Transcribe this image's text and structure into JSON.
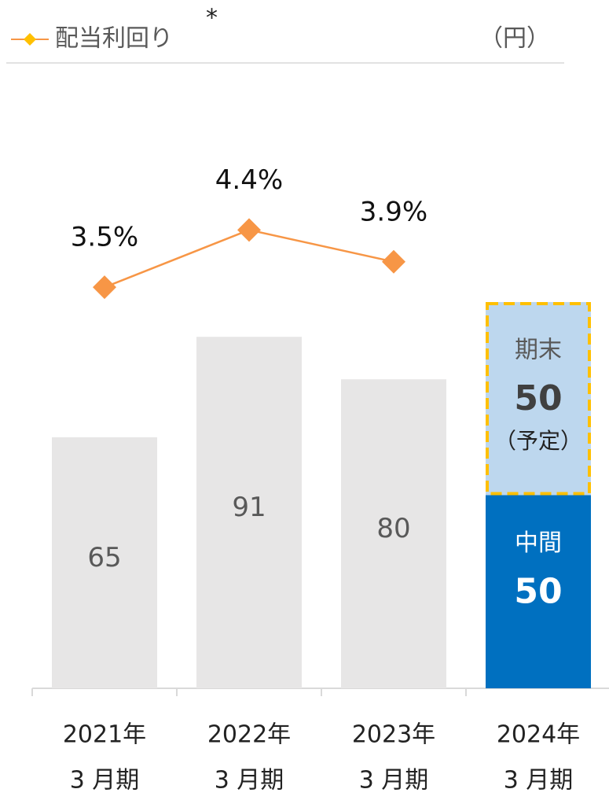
{
  "chart_data": {
    "type": "bar",
    "stacked": true,
    "unit_label": "（円）",
    "categories": [
      [
        "2021年",
        "3 月期"
      ],
      [
        "2022年",
        "3 月期"
      ],
      [
        "2023年",
        "3 月期"
      ],
      [
        "2024年",
        "3 月期"
      ]
    ],
    "series": [
      {
        "color": "#e7e6e6",
        "values": [
          65,
          91,
          80,
          null
        ]
      },
      {
        "name": "中間",
        "color": "#0070c0",
        "values": [
          null,
          null,
          null,
          50
        ]
      },
      {
        "name": "期末",
        "color": "#bdd7ee",
        "border_color": "#ffc000",
        "values": [
          null,
          null,
          null,
          50
        ],
        "annotation": "（予定）"
      },
      {
        "name": "配当利回り",
        "type": "line",
        "axis": "y2",
        "color": "#f79646",
        "marker_color": "#f79646",
        "legend_marker_color": "#ffc000",
        "legend_mark": "*",
        "values": [
          3.5,
          4.4,
          3.9,
          null
        ],
        "value_labels": [
          "3.5%",
          "4.4%",
          "3.9%",
          null
        ]
      }
    ],
    "ylim": [
      0,
      178
    ],
    "y2lim": [
      -2.8,
      8
    ],
    "legend": "top-left"
  }
}
